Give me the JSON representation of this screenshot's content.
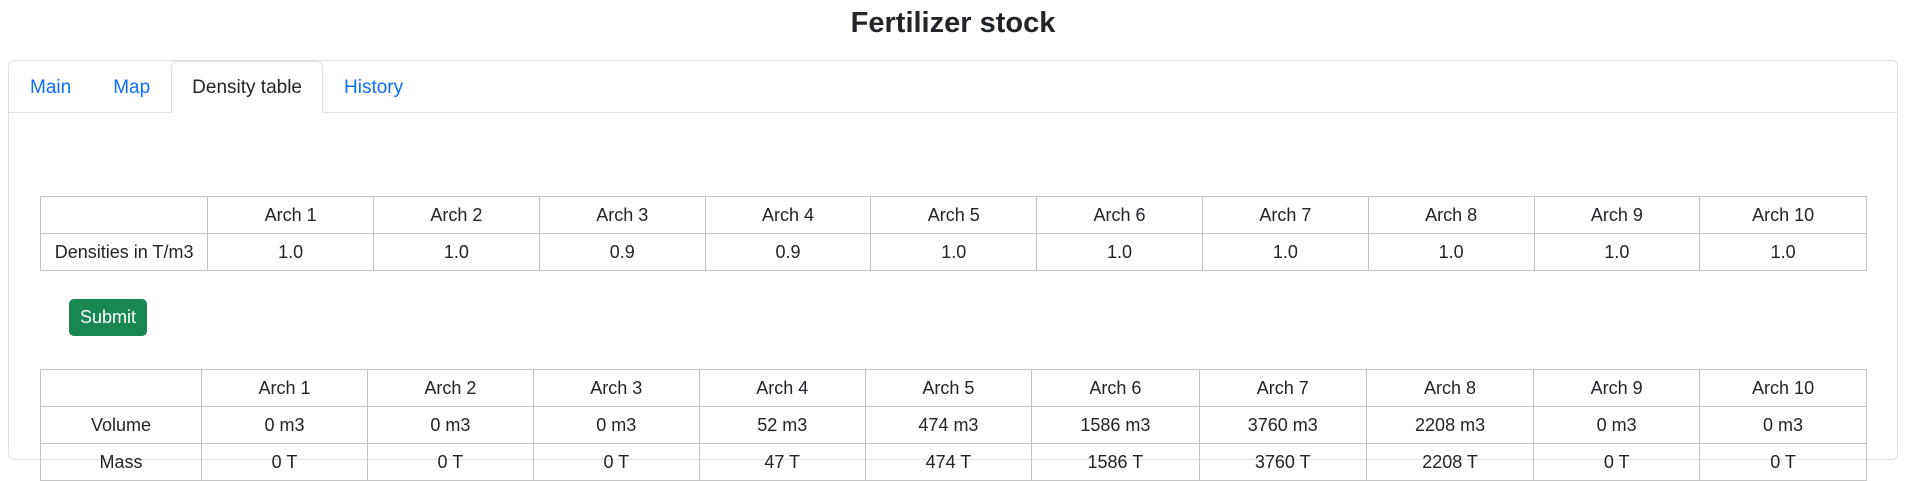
{
  "page": {
    "title": "Fertilizer stock"
  },
  "tabs": [
    {
      "label": "Main",
      "active": false
    },
    {
      "label": "Map",
      "active": false
    },
    {
      "label": "Density table",
      "active": true
    },
    {
      "label": "History",
      "active": false
    }
  ],
  "colors": {
    "link": "#0d6efd",
    "submit_bg": "#198754",
    "border": "#c4c4c4"
  },
  "density_table": {
    "headers": [
      "",
      "Arch 1",
      "Arch 2",
      "Arch 3",
      "Arch 4",
      "Arch 5",
      "Arch 6",
      "Arch 7",
      "Arch 8",
      "Arch 9",
      "Arch 10"
    ],
    "row_label": "Densities in T/m3",
    "values": [
      "1.0",
      "1.0",
      "0.9",
      "0.9",
      "1.0",
      "1.0",
      "1.0",
      "1.0",
      "1.0",
      "1.0"
    ]
  },
  "submit": {
    "label": "Submit"
  },
  "result_table": {
    "headers": [
      "",
      "Arch 1",
      "Arch 2",
      "Arch 3",
      "Arch 4",
      "Arch 5",
      "Arch 6",
      "Arch 7",
      "Arch 8",
      "Arch 9",
      "Arch 10"
    ],
    "rows": [
      {
        "label": "Volume",
        "values": [
          "0 m3",
          "0 m3",
          "0 m3",
          "52 m3",
          "474 m3",
          "1586 m3",
          "3760 m3",
          "2208 m3",
          "0 m3",
          "0 m3"
        ]
      },
      {
        "label": "Mass",
        "values": [
          "0 T",
          "0 T",
          "0 T",
          "47 T",
          "474 T",
          "1586 T",
          "3760 T",
          "2208 T",
          "0 T",
          "0 T"
        ]
      }
    ]
  }
}
